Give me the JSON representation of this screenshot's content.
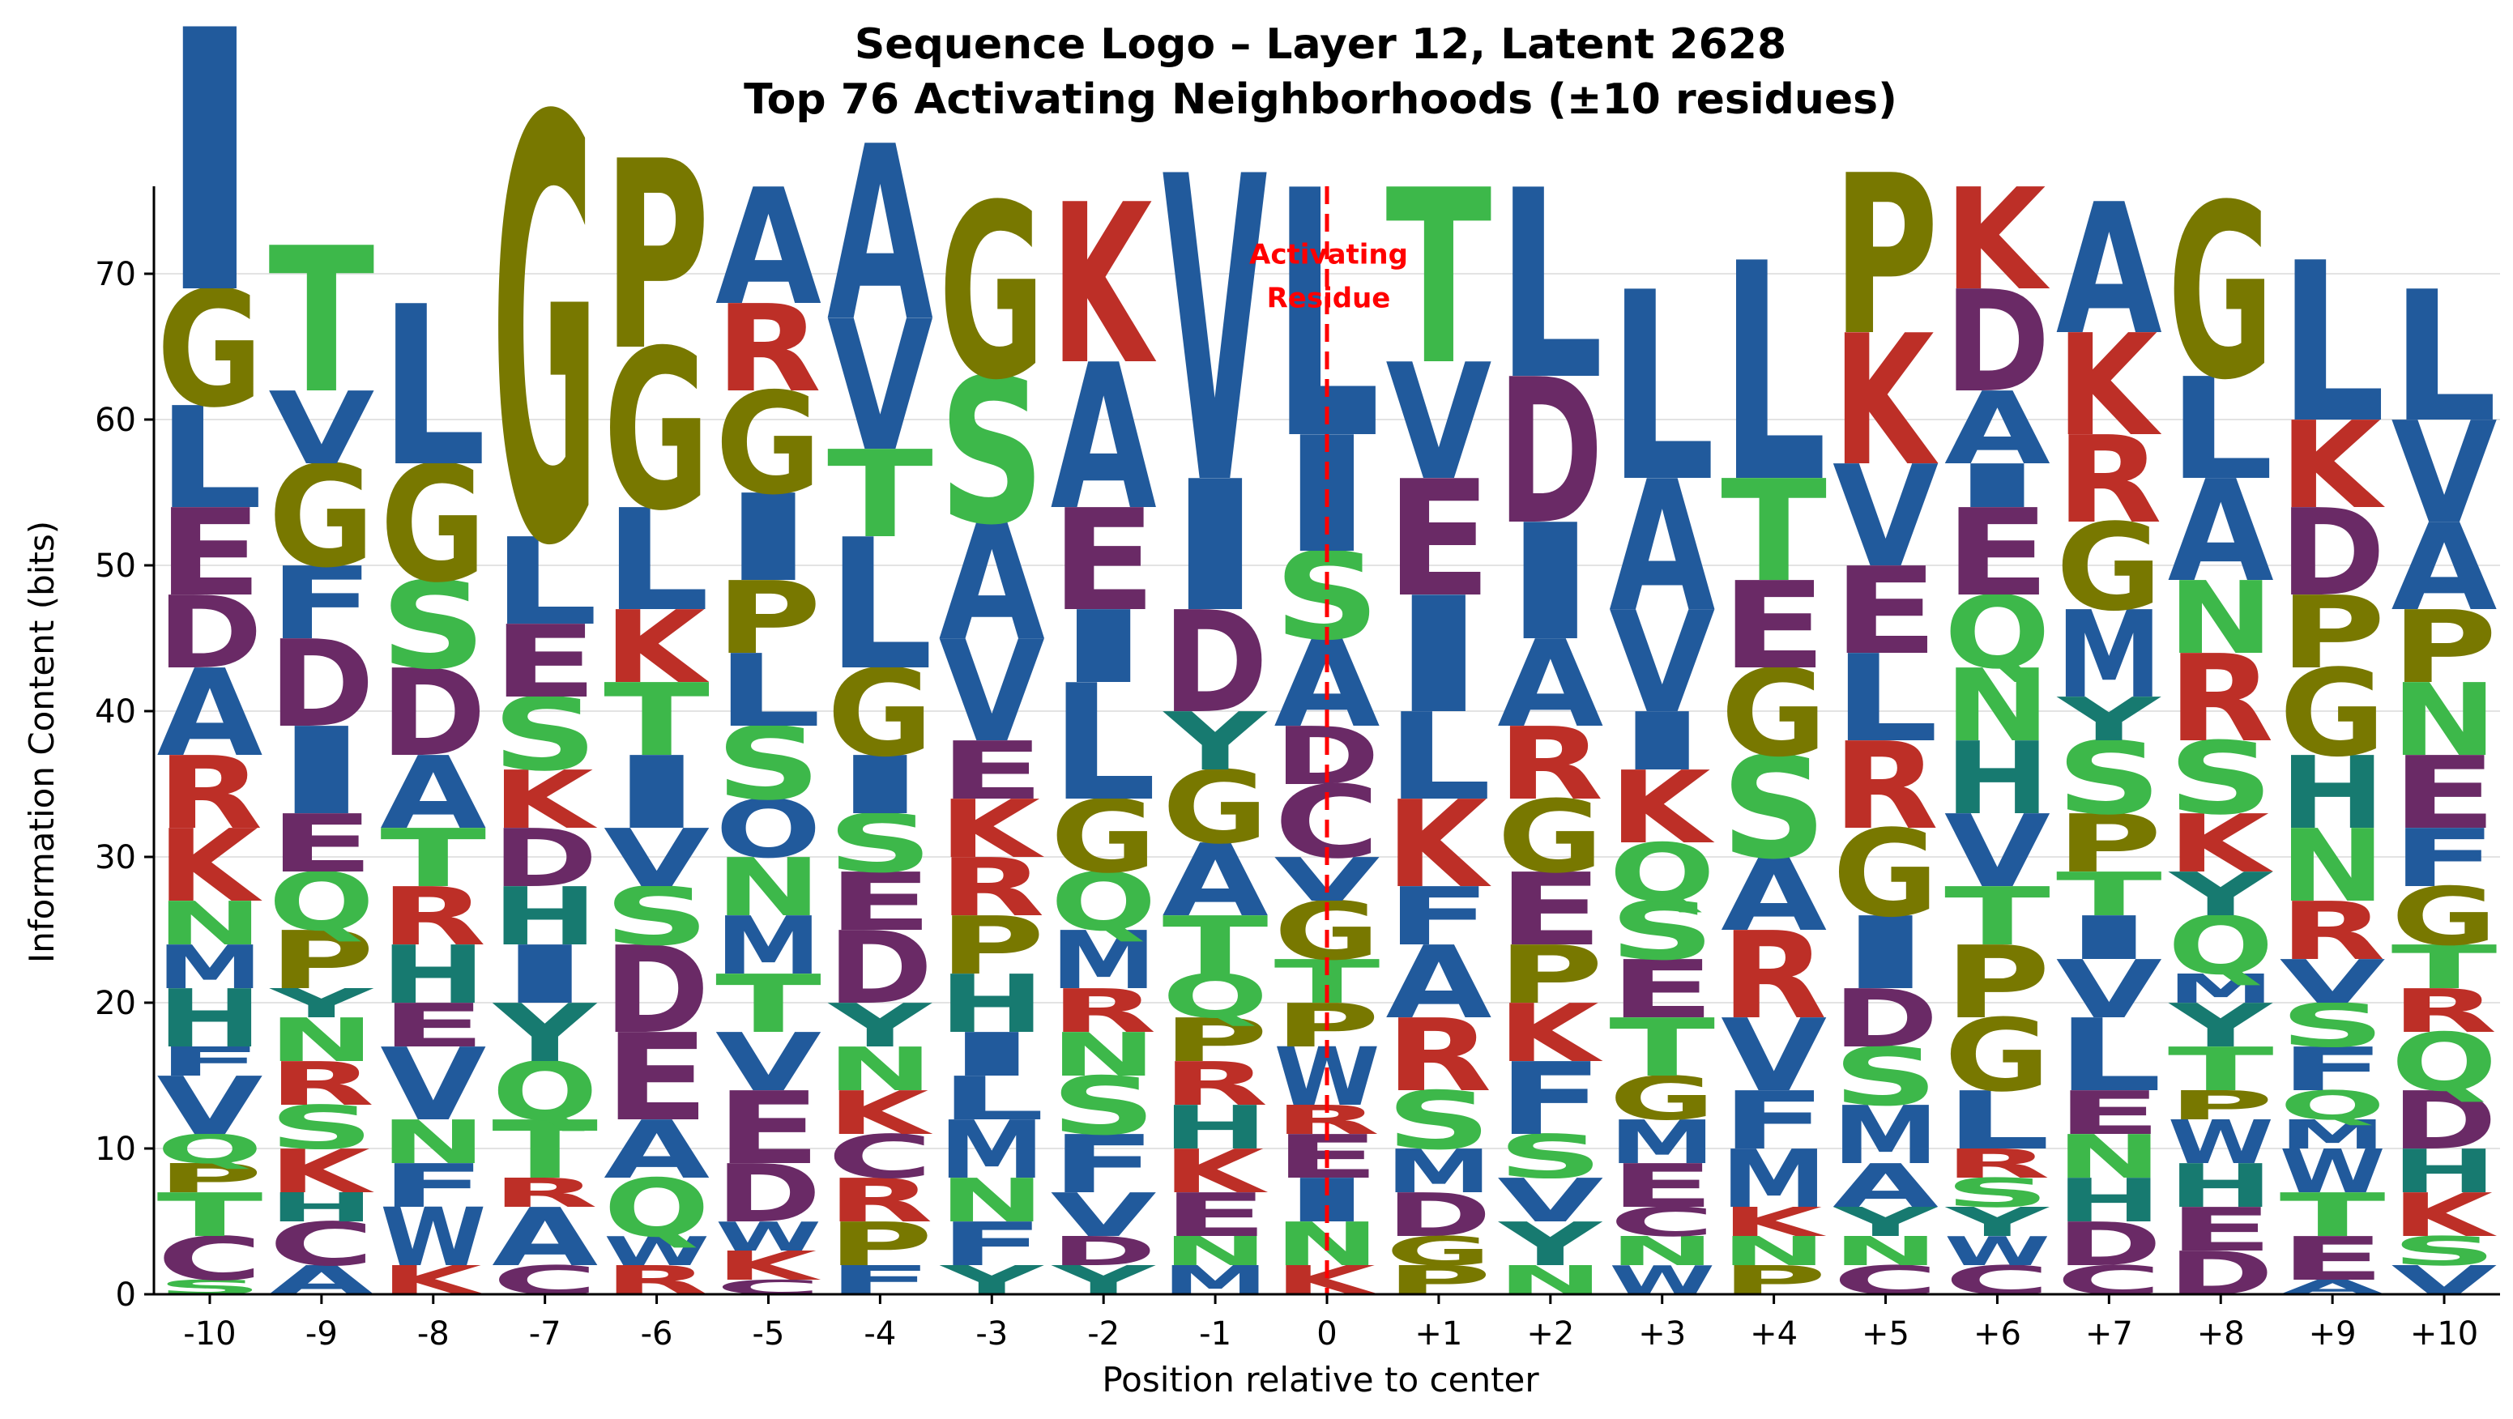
{
  "chart_data": {
    "type": "sequence-logo",
    "title": "Sequence Logo – Layer 12, Latent 2628",
    "subtitle": "Top 76 Activating Neighborhoods (±10 residues)",
    "xlabel": "Position relative to center",
    "ylabel": "Information Content (bits)",
    "ylim": [
      0,
      76
    ],
    "yticks": [
      0,
      10,
      20,
      30,
      40,
      50,
      60,
      70
    ],
    "grid": "horizontal",
    "categories": [
      "-10",
      "-9",
      "-8",
      "-7",
      "-6",
      "-5",
      "-4",
      "-3",
      "-2",
      "-1",
      "0",
      "+1",
      "+2",
      "+3",
      "+4",
      "+5",
      "+6",
      "+7",
      "+8",
      "+9",
      "+10"
    ],
    "annotation": {
      "line1": "Activating",
      "line2": "Residue",
      "position": "0",
      "color": "#ff0000"
    },
    "colors": {
      "hydrophobic": "#215a9c",
      "glycine_etc": "#787800",
      "basic": "#bd2f27",
      "acidic": "#6a2a66",
      "polar": "#3db84a",
      "aromatic_his": "#177a70"
    },
    "residue_color_map": {
      "A": "#215a9c",
      "C": "#6a2a66",
      "D": "#6a2a66",
      "E": "#6a2a66",
      "F": "#215a9c",
      "G": "#787800",
      "H": "#177a70",
      "I": "#215a9c",
      "K": "#bd2f27",
      "L": "#215a9c",
      "M": "#215a9c",
      "N": "#3db84a",
      "P": "#787800",
      "Q": "#3db84a",
      "R": "#bd2f27",
      "S": "#3db84a",
      "T": "#3db84a",
      "V": "#215a9c",
      "W": "#215a9c",
      "Y": "#177a70"
    },
    "stacks": [
      [
        [
          "S",
          1
        ],
        [
          "C",
          3
        ],
        [
          "T",
          3
        ],
        [
          "P",
          2
        ],
        [
          "Q",
          2
        ],
        [
          "V",
          4
        ],
        [
          "F",
          2
        ],
        [
          "H",
          4
        ],
        [
          "M",
          3
        ],
        [
          "N",
          3
        ],
        [
          "K",
          5
        ],
        [
          "R",
          5
        ],
        [
          "A",
          6
        ],
        [
          "D",
          5
        ],
        [
          "E",
          6
        ],
        [
          "L",
          7
        ],
        [
          "G",
          8
        ],
        [
          "I",
          18
        ]
      ],
      [
        [
          "A",
          2
        ],
        [
          "C",
          3
        ],
        [
          "H",
          2
        ],
        [
          "K",
          3
        ],
        [
          "S",
          3
        ],
        [
          "R",
          3
        ],
        [
          "N",
          3
        ],
        [
          "Y",
          2
        ],
        [
          "P",
          4
        ],
        [
          "Q",
          4
        ],
        [
          "E",
          4
        ],
        [
          "I",
          6
        ],
        [
          "D",
          6
        ],
        [
          "F",
          5
        ],
        [
          "G",
          7
        ],
        [
          "V",
          5
        ],
        [
          "T",
          10
        ]
      ],
      [
        [
          "K",
          2
        ],
        [
          "W",
          4
        ],
        [
          "F",
          3
        ],
        [
          "N",
          3
        ],
        [
          "V",
          5
        ],
        [
          "E",
          3
        ],
        [
          "H",
          4
        ],
        [
          "R",
          4
        ],
        [
          "T",
          4
        ],
        [
          "A",
          5
        ],
        [
          "D",
          6
        ],
        [
          "S",
          6
        ],
        [
          "G",
          8
        ],
        [
          "L",
          11
        ]
      ],
      [
        [
          "C",
          2
        ],
        [
          "A",
          4
        ],
        [
          "R",
          2
        ],
        [
          "T",
          4
        ],
        [
          "Q",
          4
        ],
        [
          "Y",
          4
        ],
        [
          "I",
          4
        ],
        [
          "H",
          4
        ],
        [
          "D",
          4
        ],
        [
          "K",
          4
        ],
        [
          "S",
          5
        ],
        [
          "E",
          5
        ],
        [
          "L",
          6
        ],
        [
          "G",
          29
        ]
      ],
      [
        [
          "R",
          2
        ],
        [
          "W",
          2
        ],
        [
          "Q",
          4
        ],
        [
          "A",
          4
        ],
        [
          "E",
          6
        ],
        [
          "D",
          6
        ],
        [
          "S",
          4
        ],
        [
          "V",
          4
        ],
        [
          "I",
          5
        ],
        [
          "T",
          5
        ],
        [
          "K",
          5
        ],
        [
          "L",
          7
        ],
        [
          "G",
          11
        ],
        [
          "P",
          13
        ]
      ],
      [
        [
          "C",
          1
        ],
        [
          "K",
          2
        ],
        [
          "W",
          2
        ],
        [
          "D",
          4
        ],
        [
          "E",
          5
        ],
        [
          "V",
          4
        ],
        [
          "T",
          4
        ],
        [
          "M",
          4
        ],
        [
          "N",
          4
        ],
        [
          "O",
          4
        ],
        [
          "S",
          5
        ],
        [
          "L",
          5
        ],
        [
          "P",
          5
        ],
        [
          "I",
          6
        ],
        [
          "G",
          7
        ],
        [
          "R",
          6
        ],
        [
          "A",
          8
        ]
      ],
      [
        [
          "F",
          2
        ],
        [
          "P",
          3
        ],
        [
          "R",
          3
        ],
        [
          "C",
          3
        ],
        [
          "K",
          3
        ],
        [
          "N",
          3
        ],
        [
          "Y",
          3
        ],
        [
          "D",
          5
        ],
        [
          "E",
          4
        ],
        [
          "S",
          4
        ],
        [
          "I",
          4
        ],
        [
          "G",
          6
        ],
        [
          "L",
          9
        ],
        [
          "T",
          6
        ],
        [
          "V",
          9
        ],
        [
          "A",
          12
        ]
      ],
      [
        [
          "Y",
          2
        ],
        [
          "F",
          3
        ],
        [
          "N",
          3
        ],
        [
          "M",
          4
        ],
        [
          "L",
          3
        ],
        [
          "I",
          3
        ],
        [
          "H",
          4
        ],
        [
          "P",
          4
        ],
        [
          "R",
          4
        ],
        [
          "K",
          4
        ],
        [
          "E",
          4
        ],
        [
          "V",
          7
        ],
        [
          "A",
          8
        ],
        [
          "S",
          10
        ],
        [
          "G",
          12
        ]
      ],
      [
        [
          "Y",
          2
        ],
        [
          "D",
          2
        ],
        [
          "V",
          3
        ],
        [
          "F",
          4
        ],
        [
          "S",
          4
        ],
        [
          "N",
          3
        ],
        [
          "R",
          3
        ],
        [
          "M",
          4
        ],
        [
          "Q",
          4
        ],
        [
          "G",
          5
        ],
        [
          "L",
          8
        ],
        [
          "I",
          5
        ],
        [
          "E",
          7
        ],
        [
          "A",
          10
        ],
        [
          "K",
          11
        ]
      ],
      [
        [
          "M",
          2
        ],
        [
          "N",
          2
        ],
        [
          "E",
          3
        ],
        [
          "K",
          3
        ],
        [
          "H",
          3
        ],
        [
          "R",
          3
        ],
        [
          "P",
          3
        ],
        [
          "Q",
          3
        ],
        [
          "T",
          4
        ],
        [
          "A",
          5
        ],
        [
          "G",
          5
        ],
        [
          "Y",
          4
        ],
        [
          "D",
          7
        ],
        [
          "I",
          9
        ],
        [
          "V",
          21
        ]
      ],
      [
        [
          "K",
          2
        ],
        [
          "N",
          3
        ],
        [
          "I",
          3
        ],
        [
          "E",
          3
        ],
        [
          "R",
          2
        ],
        [
          "W",
          4
        ],
        [
          "P",
          3
        ],
        [
          "T",
          3
        ],
        [
          "G",
          4
        ],
        [
          "V",
          3
        ],
        [
          "C",
          5
        ],
        [
          "D",
          4
        ],
        [
          "A",
          6
        ],
        [
          "S",
          6
        ],
        [
          "I",
          8
        ],
        [
          "L",
          17
        ]
      ],
      [
        [
          "P",
          2
        ],
        [
          "G",
          2
        ],
        [
          "D",
          3
        ],
        [
          "M",
          3
        ],
        [
          "S",
          4
        ],
        [
          "R",
          5
        ],
        [
          "A",
          5
        ],
        [
          "F",
          4
        ],
        [
          "K",
          6
        ],
        [
          "L",
          6
        ],
        [
          "I",
          8
        ],
        [
          "E",
          8
        ],
        [
          "V",
          8
        ],
        [
          "T",
          12
        ]
      ],
      [
        [
          "N",
          2
        ],
        [
          "Y",
          3
        ],
        [
          "V",
          3
        ],
        [
          "S",
          3
        ],
        [
          "F",
          5
        ],
        [
          "K",
          4
        ],
        [
          "P",
          4
        ],
        [
          "E",
          5
        ],
        [
          "G",
          5
        ],
        [
          "R",
          5
        ],
        [
          "A",
          6
        ],
        [
          "I",
          8
        ],
        [
          "D",
          10
        ],
        [
          "L",
          13
        ]
      ],
      [
        [
          "W",
          2
        ],
        [
          "N",
          2
        ],
        [
          "C",
          2
        ],
        [
          "E",
          3
        ],
        [
          "M",
          3
        ],
        [
          "G",
          3
        ],
        [
          "T",
          4
        ],
        [
          "E",
          4
        ],
        [
          "S",
          4
        ],
        [
          "Q",
          4
        ],
        [
          "K",
          5
        ],
        [
          "I",
          4
        ],
        [
          "V",
          7
        ],
        [
          "A",
          9
        ],
        [
          "L",
          13
        ]
      ],
      [
        [
          "P",
          2
        ],
        [
          "N",
          2
        ],
        [
          "K",
          2
        ],
        [
          "M",
          4
        ],
        [
          "F",
          4
        ],
        [
          "V",
          5
        ],
        [
          "R",
          6
        ],
        [
          "A",
          5
        ],
        [
          "S",
          7
        ],
        [
          "G",
          6
        ],
        [
          "E",
          6
        ],
        [
          "T",
          7
        ],
        [
          "L",
          15
        ]
      ],
      [
        [
          "C",
          2
        ],
        [
          "N",
          2
        ],
        [
          "Y",
          2
        ],
        [
          "A",
          3
        ],
        [
          "M",
          4
        ],
        [
          "S",
          4
        ],
        [
          "D",
          4
        ],
        [
          "I",
          5
        ],
        [
          "G",
          6
        ],
        [
          "R",
          6
        ],
        [
          "L",
          6
        ],
        [
          "E",
          6
        ],
        [
          "V",
          7
        ],
        [
          "K",
          9
        ],
        [
          "P",
          11
        ]
      ],
      [
        [
          "C",
          2
        ],
        [
          "W",
          2
        ],
        [
          "Y",
          2
        ],
        [
          "S",
          2
        ],
        [
          "R",
          2
        ],
        [
          "L",
          4
        ],
        [
          "G",
          5
        ],
        [
          "P",
          5
        ],
        [
          "T",
          4
        ],
        [
          "V",
          5
        ],
        [
          "H",
          5
        ],
        [
          "N",
          5
        ],
        [
          "Q",
          5
        ],
        [
          "E",
          6
        ],
        [
          "I",
          3
        ],
        [
          "A",
          5
        ],
        [
          "D",
          7
        ],
        [
          "K",
          7
        ]
      ],
      [
        [
          "C",
          2
        ],
        [
          "D",
          3
        ],
        [
          "H",
          3
        ],
        [
          "N",
          3
        ],
        [
          "E",
          3
        ],
        [
          "L",
          5
        ],
        [
          "V",
          4
        ],
        [
          "I",
          3
        ],
        [
          "T",
          3
        ],
        [
          "P",
          4
        ],
        [
          "S",
          5
        ],
        [
          "Y",
          3
        ],
        [
          "M",
          6
        ],
        [
          "G",
          6
        ],
        [
          "R",
          6
        ],
        [
          "K",
          7
        ],
        [
          "A",
          9
        ]
      ],
      [
        [
          "D",
          3
        ],
        [
          "E",
          3
        ],
        [
          "H",
          3
        ],
        [
          "W",
          3
        ],
        [
          "P",
          2
        ],
        [
          "T",
          3
        ],
        [
          "Y",
          3
        ],
        [
          "M",
          2
        ],
        [
          "Q",
          4
        ],
        [
          "Y",
          3
        ],
        [
          "K",
          4
        ],
        [
          "S",
          5
        ],
        [
          "R",
          6
        ],
        [
          "N",
          5
        ],
        [
          "A",
          7
        ],
        [
          "L",
          7
        ],
        [
          "G",
          12
        ]
      ],
      [
        [
          "A",
          1
        ],
        [
          "E",
          3
        ],
        [
          "T",
          3
        ],
        [
          "W",
          3
        ],
        [
          "M",
          2
        ],
        [
          "Q",
          2
        ],
        [
          "F",
          3
        ],
        [
          "S",
          3
        ],
        [
          "V",
          3
        ],
        [
          "R",
          4
        ],
        [
          "N",
          5
        ],
        [
          "H",
          5
        ],
        [
          "G",
          6
        ],
        [
          "P",
          5
        ],
        [
          "D",
          6
        ],
        [
          "K",
          6
        ],
        [
          "L",
          11
        ]
      ],
      [
        [
          "V",
          2
        ],
        [
          "S",
          2
        ],
        [
          "K",
          3
        ],
        [
          "H",
          3
        ],
        [
          "D",
          4
        ],
        [
          "Q",
          4
        ],
        [
          "R",
          3
        ],
        [
          "T",
          3
        ],
        [
          "G",
          4
        ],
        [
          "F",
          4
        ],
        [
          "E",
          5
        ],
        [
          "N",
          5
        ],
        [
          "P",
          5
        ],
        [
          "A",
          6
        ],
        [
          "V",
          7
        ],
        [
          "L",
          9
        ]
      ]
    ]
  }
}
